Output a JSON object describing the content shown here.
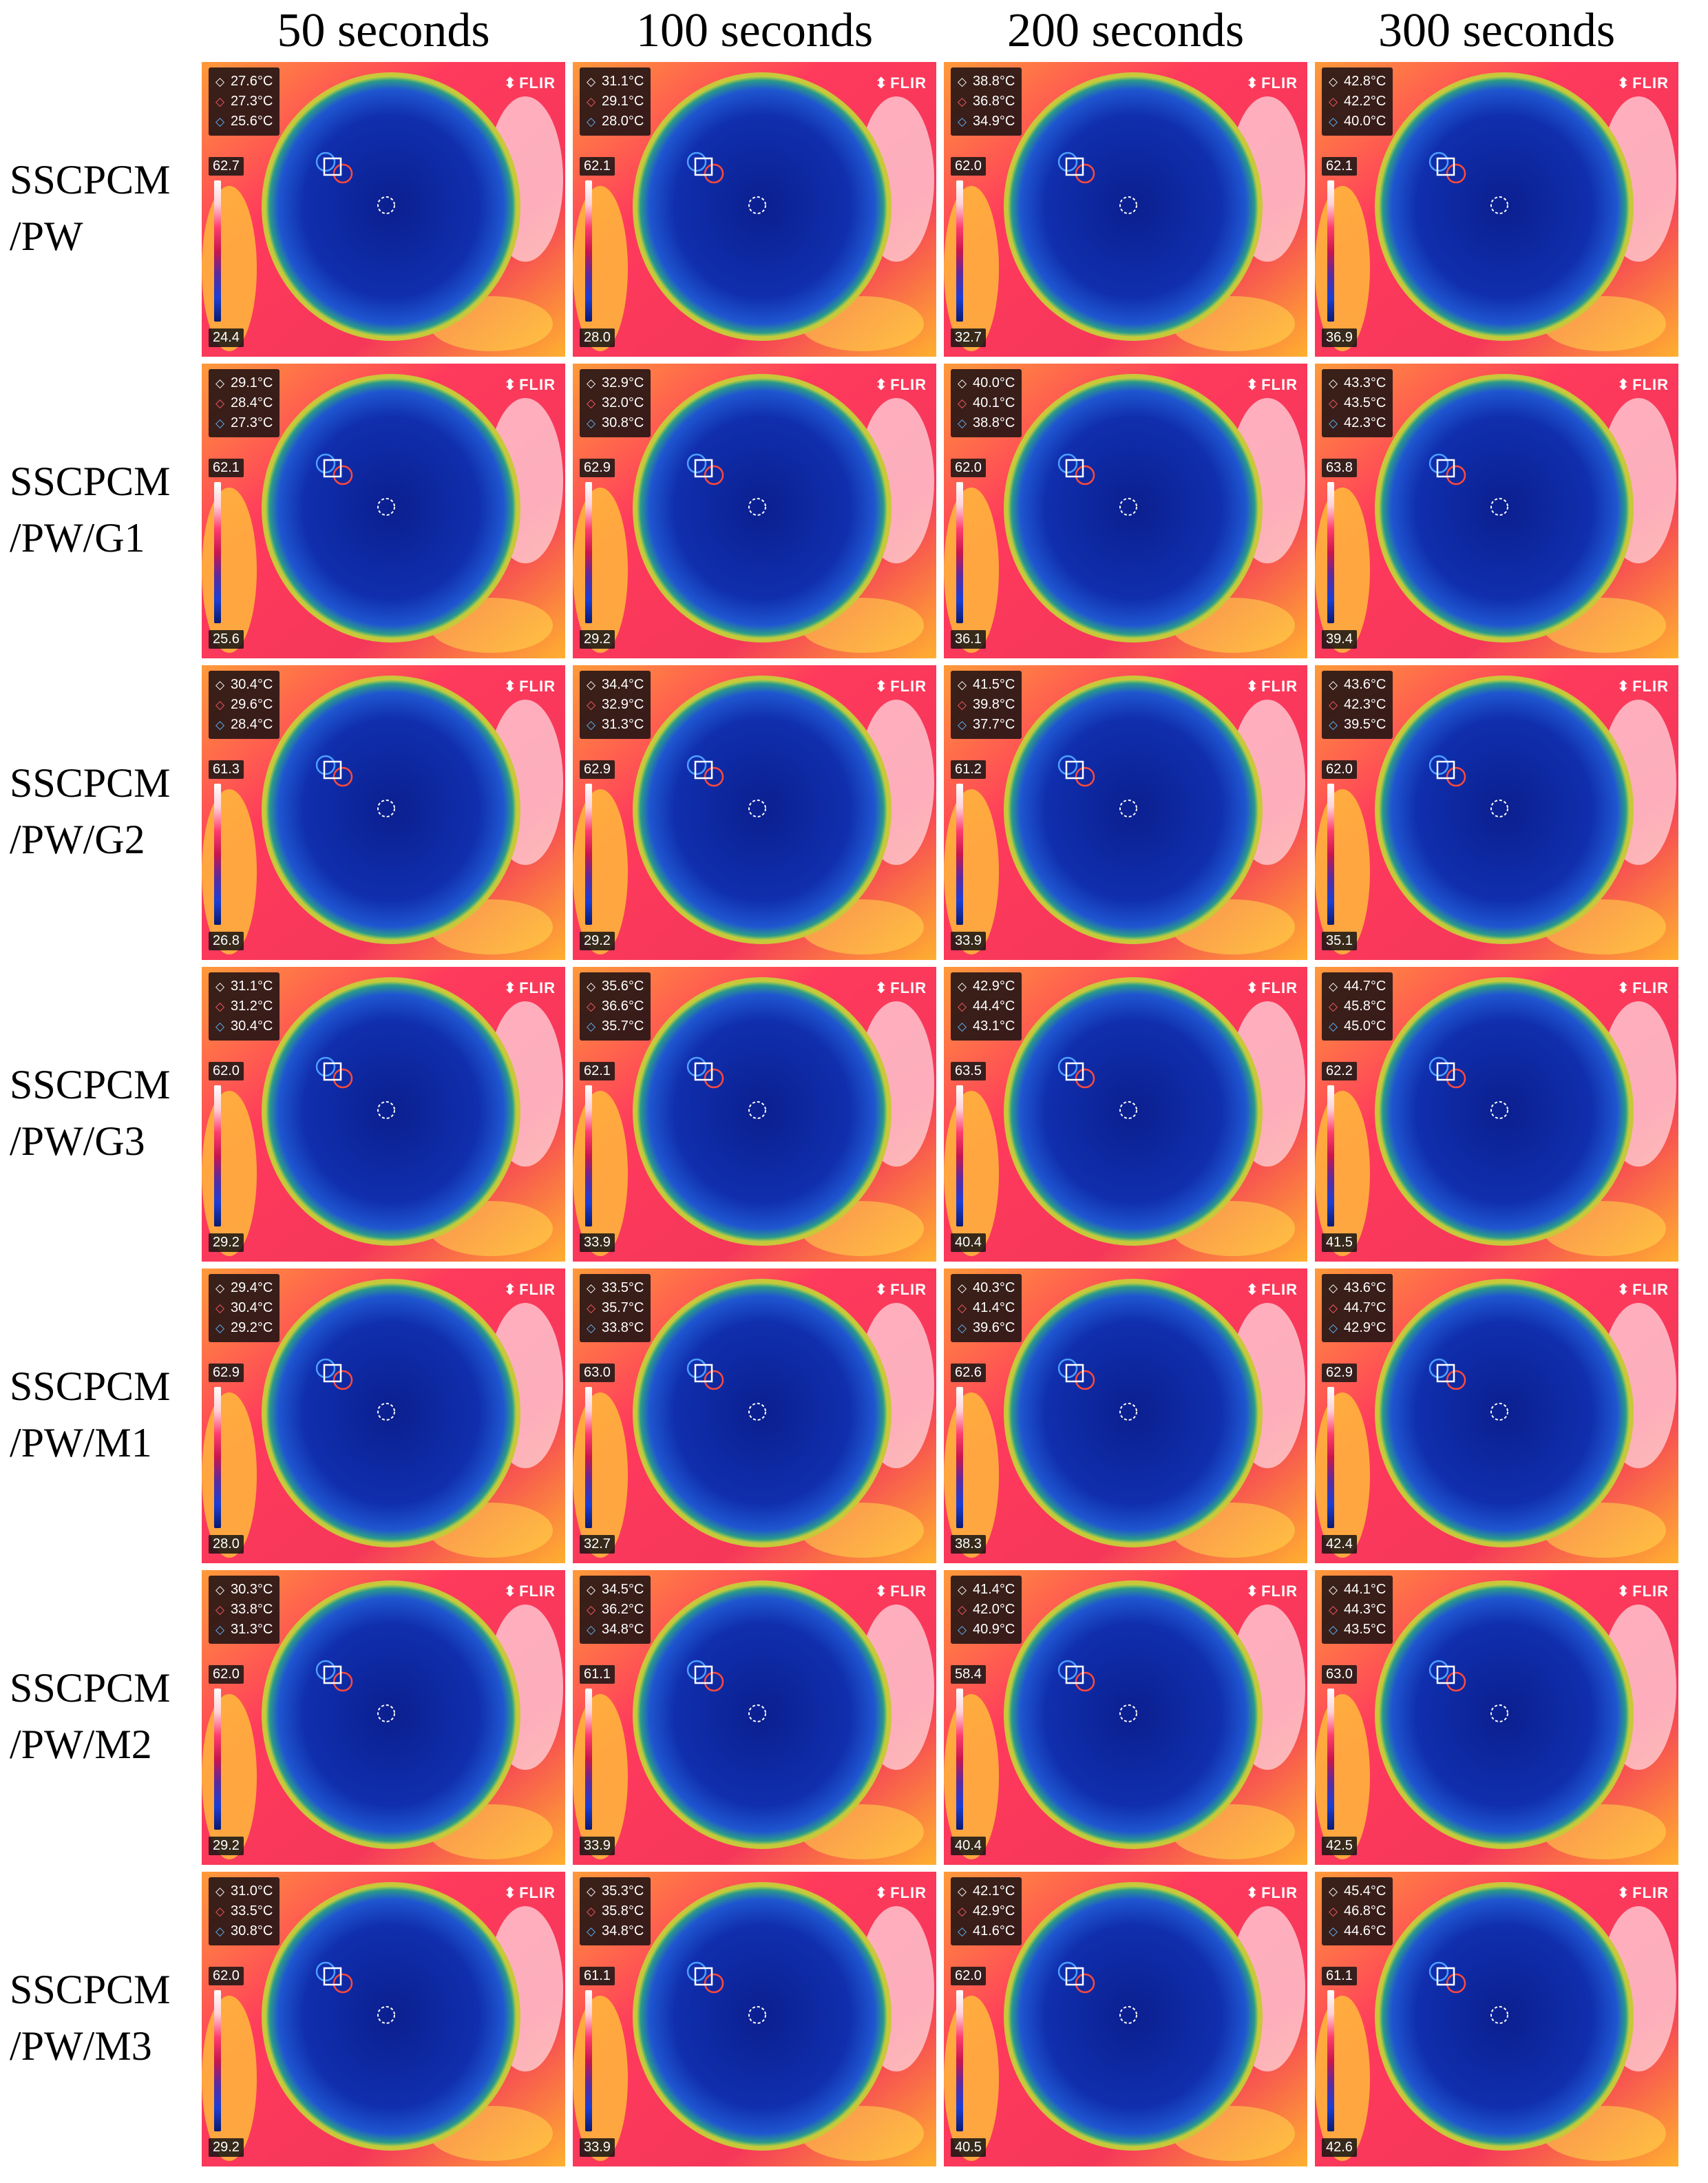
{
  "columns": [
    {
      "label": "50 seconds"
    },
    {
      "label": "100 seconds"
    },
    {
      "label": "200 seconds"
    },
    {
      "label": "300 seconds"
    }
  ],
  "brand": "FLIR",
  "rows": [
    {
      "label_line1": "SSCPCM",
      "label_line2": "/PW",
      "cells": [
        {
          "t1": "27.6°C",
          "t2": "27.3°C",
          "t3": "25.6°C",
          "max": "62.7",
          "min": "24.4"
        },
        {
          "t1": "31.1°C",
          "t2": "29.1°C",
          "t3": "28.0°C",
          "max": "62.1",
          "min": "28.0"
        },
        {
          "t1": "38.8°C",
          "t2": "36.8°C",
          "t3": "34.9°C",
          "max": "62.0",
          "min": "32.7"
        },
        {
          "t1": "42.8°C",
          "t2": "42.2°C",
          "t3": "40.0°C",
          "max": "62.1",
          "min": "36.9"
        }
      ]
    },
    {
      "label_line1": "SSCPCM",
      "label_line2": "/PW/G1",
      "cells": [
        {
          "t1": "29.1°C",
          "t2": "28.4°C",
          "t3": "27.3°C",
          "max": "62.1",
          "min": "25.6"
        },
        {
          "t1": "32.9°C",
          "t2": "32.0°C",
          "t3": "30.8°C",
          "max": "62.9",
          "min": "29.2"
        },
        {
          "t1": "40.0°C",
          "t2": "40.1°C",
          "t3": "38.8°C",
          "max": "62.0",
          "min": "36.1"
        },
        {
          "t1": "43.3°C",
          "t2": "43.5°C",
          "t3": "42.3°C",
          "max": "63.8",
          "min": "39.4"
        }
      ]
    },
    {
      "label_line1": "SSCPCM",
      "label_line2": "/PW/G2",
      "cells": [
        {
          "t1": "30.4°C",
          "t2": "29.6°C",
          "t3": "28.4°C",
          "max": "61.3",
          "min": "26.8"
        },
        {
          "t1": "34.4°C",
          "t2": "32.9°C",
          "t3": "31.3°C",
          "max": "62.9",
          "min": "29.2"
        },
        {
          "t1": "41.5°C",
          "t2": "39.8°C",
          "t3": "37.7°C",
          "max": "61.2",
          "min": "33.9"
        },
        {
          "t1": "43.6°C",
          "t2": "42.3°C",
          "t3": "39.5°C",
          "max": "62.0",
          "min": "35.1"
        }
      ]
    },
    {
      "label_line1": "SSCPCM",
      "label_line2": "/PW/G3",
      "cells": [
        {
          "t1": "31.1°C",
          "t2": "31.2°C",
          "t3": "30.4°C",
          "max": "62.0",
          "min": "29.2"
        },
        {
          "t1": "35.6°C",
          "t2": "36.6°C",
          "t3": "35.7°C",
          "max": "62.1",
          "min": "33.9"
        },
        {
          "t1": "42.9°C",
          "t2": "44.4°C",
          "t3": "43.1°C",
          "max": "63.5",
          "min": "40.4"
        },
        {
          "t1": "44.7°C",
          "t2": "45.8°C",
          "t3": "45.0°C",
          "max": "62.2",
          "min": "41.5"
        }
      ]
    },
    {
      "label_line1": "SSCPCM",
      "label_line2": "/PW/M1",
      "cells": [
        {
          "t1": "29.4°C",
          "t2": "30.4°C",
          "t3": "29.2°C",
          "max": "62.9",
          "min": "28.0"
        },
        {
          "t1": "33.5°C",
          "t2": "35.7°C",
          "t3": "33.8°C",
          "max": "63.0",
          "min": "32.7"
        },
        {
          "t1": "40.3°C",
          "t2": "41.4°C",
          "t3": "39.6°C",
          "max": "62.6",
          "min": "38.3"
        },
        {
          "t1": "43.6°C",
          "t2": "44.7°C",
          "t3": "42.9°C",
          "max": "62.9",
          "min": "42.4"
        }
      ]
    },
    {
      "label_line1": "SSCPCM",
      "label_line2": "/PW/M2",
      "cells": [
        {
          "t1": "30.3°C",
          "t2": "33.8°C",
          "t3": "31.3°C",
          "max": "62.0",
          "min": "29.2"
        },
        {
          "t1": "34.5°C",
          "t2": "36.2°C",
          "t3": "34.8°C",
          "max": "61.1",
          "min": "33.9"
        },
        {
          "t1": "41.4°C",
          "t2": "42.0°C",
          "t3": "40.9°C",
          "max": "58.4",
          "min": "40.4"
        },
        {
          "t1": "44.1°C",
          "t2": "44.3°C",
          "t3": "43.5°C",
          "max": "63.0",
          "min": "42.5"
        }
      ]
    },
    {
      "label_line1": "SSCPCM",
      "label_line2": "/PW/M3",
      "cells": [
        {
          "t1": "31.0°C",
          "t2": "33.5°C",
          "t3": "30.8°C",
          "max": "62.0",
          "min": "29.2"
        },
        {
          "t1": "35.3°C",
          "t2": "35.8°C",
          "t3": "34.8°C",
          "max": "61.1",
          "min": "33.9"
        },
        {
          "t1": "42.1°C",
          "t2": "42.9°C",
          "t3": "41.6°C",
          "max": "62.0",
          "min": "40.5"
        },
        {
          "t1": "45.4°C",
          "t2": "46.8°C",
          "t3": "44.6°C",
          "max": "61.1",
          "min": "42.6"
        }
      ]
    }
  ]
}
